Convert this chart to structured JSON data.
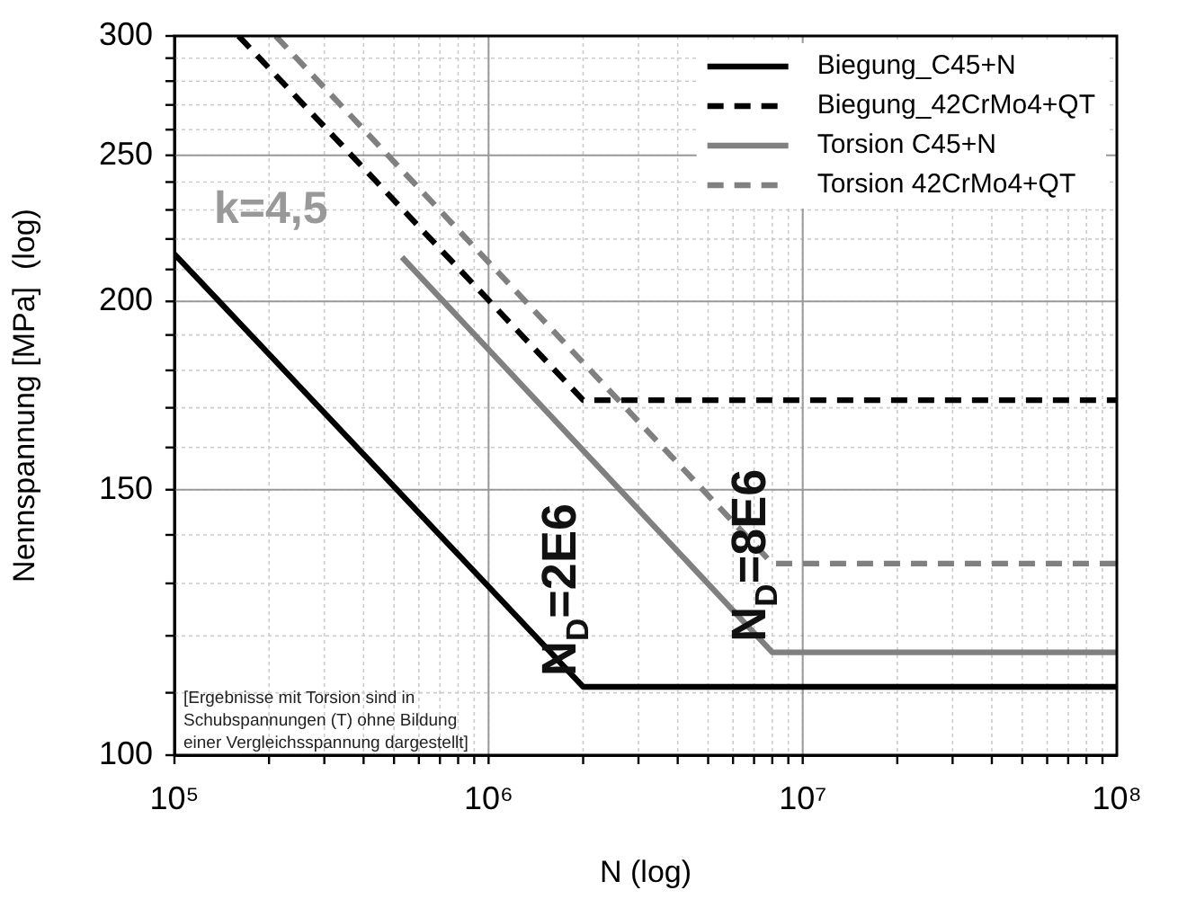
{
  "chart_data": {
    "type": "line",
    "xlabel": "N (log)",
    "ylabel": "Nennspannung [MPa]  (log)",
    "log": "xy",
    "grid": true,
    "legend": "top right",
    "marker": "none",
    "xlim": [
      100000,
      100000000
    ],
    "xticks": [
      {
        "value": 100000,
        "label": "10⁵"
      },
      {
        "value": 1000000,
        "label": "10⁶"
      },
      {
        "value": 10000000,
        "label": "10⁷"
      },
      {
        "value": 100000000,
        "label": "10⁸"
      }
    ],
    "ylim": [
      100,
      300
    ],
    "yticks": [
      100,
      150,
      200,
      250,
      300
    ],
    "series": [
      {
        "name": "Biegung_C45+N",
        "color": "#000000",
        "line_style": "solid",
        "x": [
          100000,
          2000000,
          100000000
        ],
        "values": [
          215,
          111,
          111
        ]
      },
      {
        "name": "Biegung_42CrMo4+QT",
        "color": "#000000",
        "line_style": "dashed",
        "x": [
          160000,
          2000000,
          100000000
        ],
        "values": [
          300,
          172,
          172
        ]
      },
      {
        "name": "Torsion C45+N",
        "color": "#808080",
        "line_style": "solid",
        "x": [
          530000,
          8000000,
          100000000
        ],
        "values": [
          214,
          117,
          117
        ]
      },
      {
        "name": "Torsion 42CrMo4+QT",
        "color": "#808080",
        "line_style": "dashed",
        "x": [
          210000,
          8000000,
          100000000
        ],
        "values": [
          300,
          134,
          134
        ]
      }
    ],
    "annotations": [
      "k=4,5",
      {
        "text": "N$_{D}$=2E6",
        "x": 2000000,
        "y": 111
      },
      {
        "text": "N$_{D}$=8E6",
        "x": 8000000,
        "y": 117
      },
      "[Ergebnisse mit Torsion sind in\nSchubspannungen (T) ohne Bildung\neiner Vergleichsspannung dargestellt]"
    ]
  }
}
